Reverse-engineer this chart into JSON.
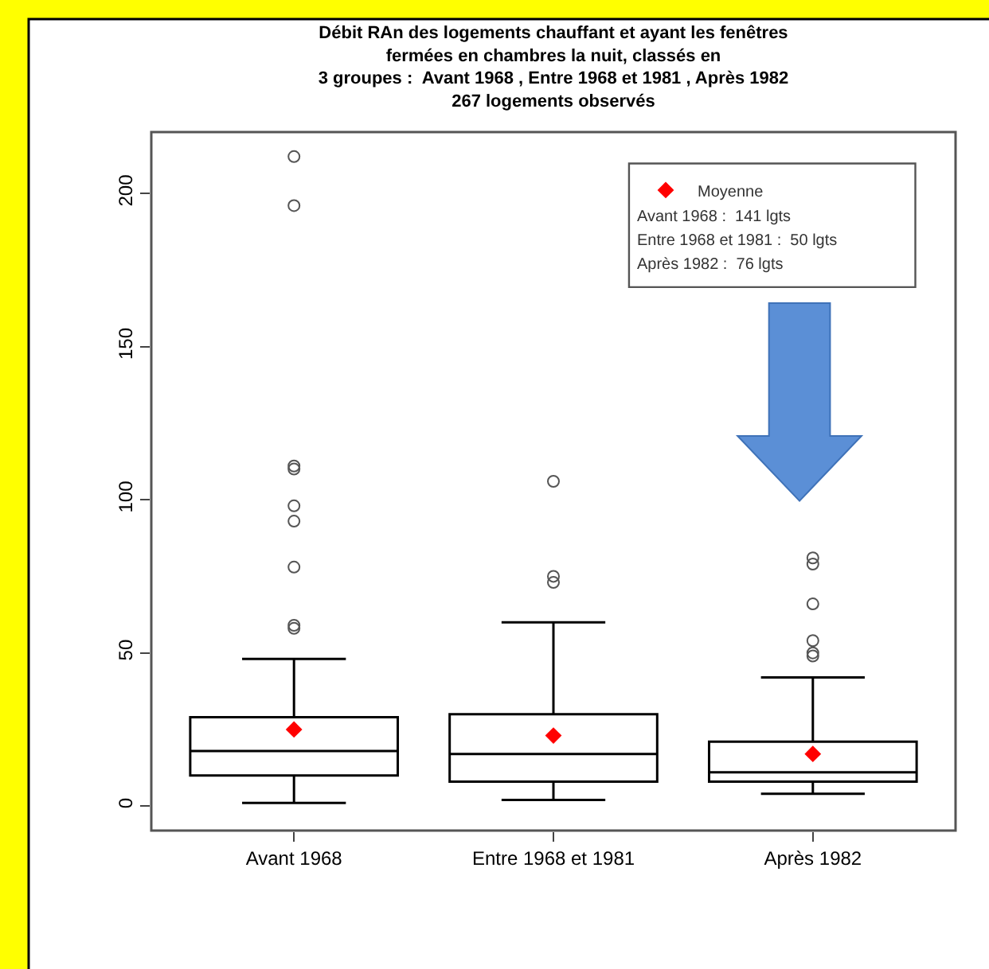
{
  "chart_data": {
    "type": "box",
    "title": "Débit RAn des logements chauffant et ayant les fenêtres\nfermées en chambres la nuit, classés en\n3 groupes :  Avant 1968 , Entre 1968 et 1981 , Après 1982\n267 logements observés",
    "categories": [
      "Avant 1968",
      "Entre 1968 et 1981",
      "Après 1982"
    ],
    "boxes": [
      {
        "low": 1,
        "q1": 10,
        "median": 18,
        "q3": 29,
        "high": 48,
        "outliers": [
          212,
          196,
          111,
          110,
          98,
          93,
          78,
          59,
          58
        ]
      },
      {
        "low": 2,
        "q1": 8,
        "median": 17,
        "q3": 30,
        "high": 60,
        "outliers": [
          106,
          75,
          73
        ]
      },
      {
        "low": 4,
        "q1": 8,
        "median": 11,
        "q3": 21,
        "high": 42,
        "outliers": [
          81,
          79,
          66,
          54,
          50,
          49
        ]
      }
    ],
    "color": "#000000",
    "series": [
      {
        "name": "Moyenne",
        "type": "scatter",
        "color": "#ff0000",
        "marker": "diamond",
        "x": [
          "Avant 1968",
          "Entre 1968 et 1981",
          "Après 1982"
        ],
        "values": [
          25,
          23,
          17
        ]
      }
    ],
    "annotations": [
      "Avant 1968 :  141 lgts",
      "Entre 1968 et 1981 :  50 lgts",
      "Après 1982 :  76 lgts"
    ],
    "ylim": [
      -8,
      220
    ],
    "yticks": [
      0,
      50,
      100,
      150,
      200
    ],
    "legend": "top right"
  }
}
